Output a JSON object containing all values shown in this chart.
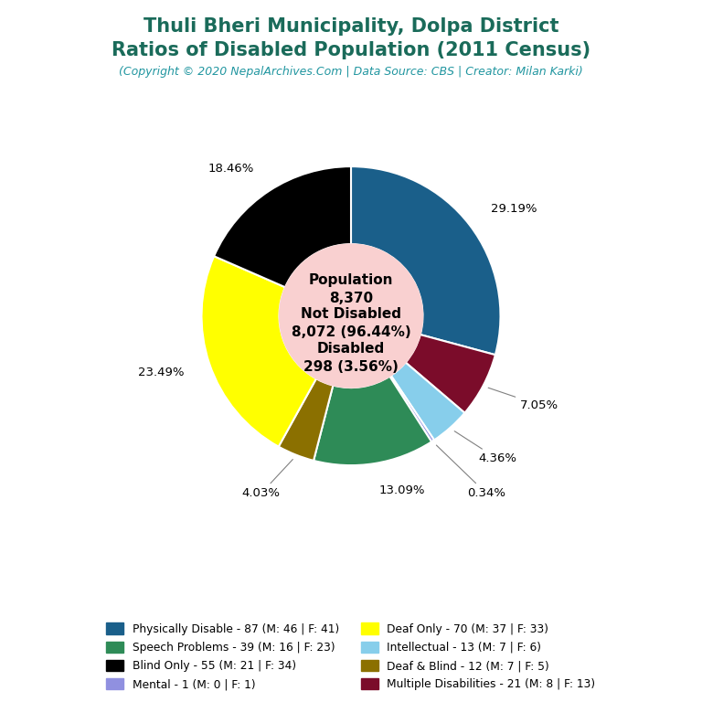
{
  "title_line1": "Thuli Bheri Municipality, Dolpa District",
  "title_line2": "Ratios of Disabled Population (2011 Census)",
  "subtitle": "(Copyright © 2020 NepalArchives.Com | Data Source: CBS | Creator: Milan Karki)",
  "title_color": "#1a6b5a",
  "subtitle_color": "#2196a0",
  "center_bg": "#f9d0d0",
  "slices": [
    {
      "label": "Physically Disable - 87 (M: 46 | F: 41)",
      "value": 87,
      "color": "#1a5f8a",
      "pct": "29.19%"
    },
    {
      "label": "Multiple Disabilities - 21 (M: 8 | F: 13)",
      "value": 21,
      "color": "#7b0c2a",
      "pct": "7.05%"
    },
    {
      "label": "Intellectual - 13 (M: 7 | F: 6)",
      "value": 13,
      "color": "#87ceeb",
      "pct": "4.36%"
    },
    {
      "label": "Mental - 1 (M: 0 | F: 1)",
      "value": 1,
      "color": "#9090e0",
      "pct": "0.34%"
    },
    {
      "label": "Speech Problems - 39 (M: 16 | F: 23)",
      "value": 39,
      "color": "#2e8b57",
      "pct": "13.09%"
    },
    {
      "label": "Deaf & Blind - 12 (M: 7 | F: 5)",
      "value": 12,
      "color": "#8b7000",
      "pct": "4.03%"
    },
    {
      "label": "Deaf Only - 70 (M: 37 | F: 33)",
      "value": 70,
      "color": "#ffff00",
      "pct": "23.49%"
    },
    {
      "label": "Blind Only - 55 (M: 21 | F: 34)",
      "value": 55,
      "color": "#000000",
      "pct": "18.46%"
    }
  ],
  "legend_order": [
    {
      "label": "Physically Disable - 87 (M: 46 | F: 41)",
      "color": "#1a5f8a"
    },
    {
      "label": "Blind Only - 55 (M: 21 | F: 34)",
      "color": "#000000"
    },
    {
      "label": "Deaf Only - 70 (M: 37 | F: 33)",
      "color": "#ffff00"
    },
    {
      "label": "Deaf & Blind - 12 (M: 7 | F: 5)",
      "color": "#8b7000"
    },
    {
      "label": "Speech Problems - 39 (M: 16 | F: 23)",
      "color": "#2e8b57"
    },
    {
      "label": "Mental - 1 (M: 0 | F: 1)",
      "color": "#9090e0"
    },
    {
      "label": "Intellectual - 13 (M: 7 | F: 6)",
      "color": "#87ceeb"
    },
    {
      "label": "Multiple Disabilities - 21 (M: 8 | F: 13)",
      "color": "#7b0c2a"
    }
  ],
  "background_color": "#ffffff"
}
